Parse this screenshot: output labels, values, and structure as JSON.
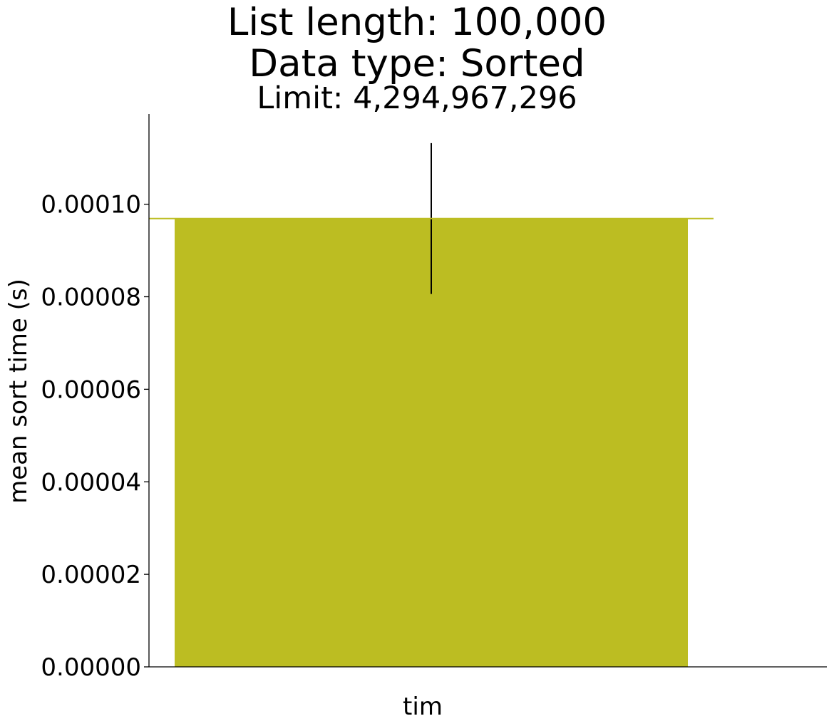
{
  "chart_data": {
    "type": "bar",
    "title": "List length: 100,000",
    "subtitle": "Data type: Sorted",
    "subtitle2": "Limit: 4,294,967,296",
    "categories": [
      "tim"
    ],
    "values": [
      9.69e-05
    ],
    "error": [
      1.63e-05
    ],
    "xlabel": "",
    "ylabel": "mean sort time (s)",
    "ylim": [
      0,
      0.0001195
    ],
    "yticks": [
      0,
      2e-05,
      4e-05,
      6e-05,
      8e-05,
      0.0001
    ],
    "ytick_labels": [
      "0.00000",
      "0.00002",
      "0.00004",
      "0.00006",
      "0.00008",
      "0.00010"
    ],
    "grid": false,
    "colors": {
      "bar": "#bcbd22",
      "error_bar": "#000000",
      "axis": "#000000"
    }
  }
}
